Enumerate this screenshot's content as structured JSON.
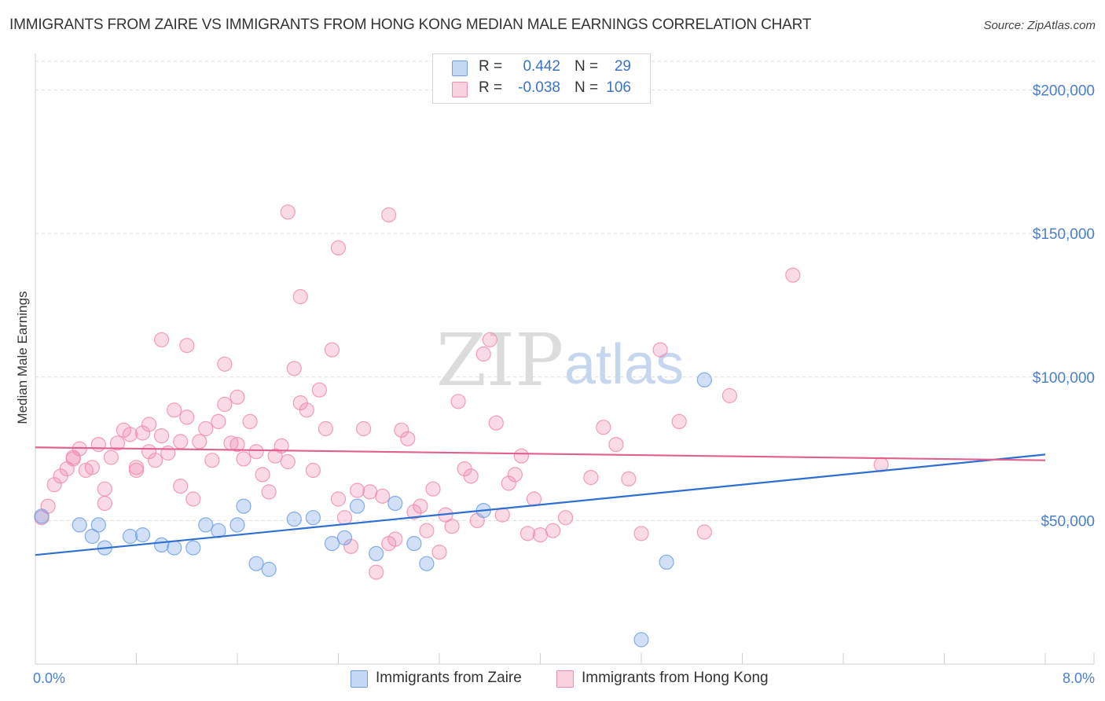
{
  "title": "IMMIGRANTS FROM ZAIRE VS IMMIGRANTS FROM HONG KONG MEDIAN MALE EARNINGS CORRELATION CHART",
  "source": "Source: ZipAtlas.com",
  "watermark": {
    "zip": "ZIP",
    "atlas": "atlas"
  },
  "legend_top": [
    {
      "r_label": "R =",
      "r_value": "0.442",
      "n_label": "N =",
      "n_value": "29",
      "color": "#6fa0e6"
    },
    {
      "r_label": "R =",
      "r_value": "-0.038",
      "n_label": "N =",
      "n_value": "106",
      "color": "#f08cb0"
    }
  ],
  "legend_bottom": [
    {
      "label": "Immigrants from Zaire",
      "color": "#6fa0e6"
    },
    {
      "label": "Immigrants from Hong Kong",
      "color": "#f08cb0"
    }
  ],
  "chart_data": {
    "type": "scatter",
    "title": "IMMIGRANTS FROM ZAIRE VS IMMIGRANTS FROM HONG KONG MEDIAN MALE EARNINGS CORRELATION CHART",
    "xlabel": "",
    "ylabel": "Median Male Earnings",
    "xlim": [
      0.0,
      8.0
    ],
    "ylim": [
      0,
      210000
    ],
    "x_tick_labels": [
      "0.0%",
      "8.0%"
    ],
    "y_ticks": [
      50000,
      100000,
      150000,
      200000
    ],
    "y_tick_labels": [
      "$50,000",
      "$100,000",
      "$150,000",
      "$200,000"
    ],
    "grid": true,
    "series": [
      {
        "name": "Immigrants from Zaire",
        "color": "#6fa0e6",
        "trend": {
          "x": [
            0.0,
            8.0
          ],
          "y": [
            38000,
            73000
          ]
        },
        "points": [
          [
            0.05,
            51500
          ],
          [
            0.35,
            48500
          ],
          [
            0.5,
            48500
          ],
          [
            0.45,
            44500
          ],
          [
            0.55,
            40500
          ],
          [
            0.75,
            44500
          ],
          [
            0.85,
            45000
          ],
          [
            1.0,
            41500
          ],
          [
            1.1,
            40500
          ],
          [
            1.25,
            40500
          ],
          [
            1.35,
            48500
          ],
          [
            1.45,
            46500
          ],
          [
            1.6,
            48500
          ],
          [
            1.75,
            35000
          ],
          [
            1.85,
            33000
          ],
          [
            2.05,
            50500
          ],
          [
            2.2,
            51000
          ],
          [
            2.35,
            42000
          ],
          [
            2.45,
            44000
          ],
          [
            2.55,
            55000
          ],
          [
            2.7,
            38500
          ],
          [
            2.85,
            56000
          ],
          [
            3.0,
            42000
          ],
          [
            3.1,
            35000
          ],
          [
            3.55,
            53500
          ],
          [
            5.3,
            99000
          ],
          [
            5.0,
            35500
          ],
          [
            4.8,
            8500
          ],
          [
            1.65,
            55000
          ]
        ]
      },
      {
        "name": "Immigrants from Hong Kong",
        "color": "#f08cb0",
        "trend": {
          "x": [
            0.0,
            8.0
          ],
          "y": [
            75500,
            71000
          ]
        },
        "points": [
          [
            0.05,
            51000
          ],
          [
            0.1,
            55000
          ],
          [
            0.15,
            62500
          ],
          [
            0.2,
            65500
          ],
          [
            0.25,
            68000
          ],
          [
            0.3,
            71500
          ],
          [
            0.35,
            75000
          ],
          [
            0.4,
            67500
          ],
          [
            0.45,
            68500
          ],
          [
            0.5,
            76500
          ],
          [
            0.55,
            56000
          ],
          [
            0.6,
            72000
          ],
          [
            0.65,
            77000
          ],
          [
            0.7,
            81500
          ],
          [
            0.75,
            80000
          ],
          [
            0.8,
            68500
          ],
          [
            0.85,
            80500
          ],
          [
            0.9,
            74000
          ],
          [
            0.95,
            71000
          ],
          [
            1.0,
            79500
          ],
          [
            1.05,
            73500
          ],
          [
            1.1,
            88500
          ],
          [
            1.15,
            77500
          ],
          [
            1.2,
            86000
          ],
          [
            1.25,
            57500
          ],
          [
            1.3,
            77500
          ],
          [
            1.35,
            82000
          ],
          [
            1.4,
            71000
          ],
          [
            1.45,
            84500
          ],
          [
            1.5,
            90500
          ],
          [
            1.55,
            77000
          ],
          [
            1.6,
            93000
          ],
          [
            1.65,
            71500
          ],
          [
            1.7,
            84500
          ],
          [
            1.75,
            74000
          ],
          [
            1.8,
            66000
          ],
          [
            1.85,
            60000
          ],
          [
            1.9,
            72500
          ],
          [
            1.95,
            76000
          ],
          [
            2.0,
            70500
          ],
          [
            2.05,
            103000
          ],
          [
            2.1,
            91000
          ],
          [
            2.15,
            88500
          ],
          [
            2.2,
            67500
          ],
          [
            2.25,
            95500
          ],
          [
            2.3,
            82000
          ],
          [
            2.35,
            109500
          ],
          [
            2.4,
            57500
          ],
          [
            2.45,
            51000
          ],
          [
            2.5,
            41000
          ],
          [
            2.55,
            60500
          ],
          [
            2.6,
            82000
          ],
          [
            2.65,
            60000
          ],
          [
            2.7,
            32000
          ],
          [
            2.75,
            58500
          ],
          [
            2.8,
            42000
          ],
          [
            2.85,
            43500
          ],
          [
            2.9,
            81500
          ],
          [
            2.95,
            78500
          ],
          [
            3.0,
            53000
          ],
          [
            3.05,
            55000
          ],
          [
            3.1,
            46500
          ],
          [
            3.15,
            61000
          ],
          [
            3.2,
            39000
          ],
          [
            3.25,
            52000
          ],
          [
            3.3,
            48000
          ],
          [
            3.35,
            91500
          ],
          [
            3.4,
            68000
          ],
          [
            3.45,
            65500
          ],
          [
            3.5,
            50000
          ],
          [
            3.55,
            108000
          ],
          [
            3.6,
            113000
          ],
          [
            3.65,
            84000
          ],
          [
            3.7,
            52000
          ],
          [
            3.75,
            63000
          ],
          [
            3.8,
            66000
          ],
          [
            3.85,
            72500
          ],
          [
            3.9,
            45500
          ],
          [
            3.95,
            57500
          ],
          [
            4.0,
            45000
          ],
          [
            4.1,
            46500
          ],
          [
            4.2,
            51000
          ],
          [
            4.4,
            65000
          ],
          [
            4.5,
            82500
          ],
          [
            4.6,
            76500
          ],
          [
            4.7,
            64500
          ],
          [
            4.8,
            45500
          ],
          [
            4.95,
            109500
          ],
          [
            5.1,
            84500
          ],
          [
            5.3,
            46000
          ],
          [
            5.5,
            93500
          ],
          [
            6.0,
            135500
          ],
          [
            6.7,
            69500
          ],
          [
            1.0,
            113000
          ],
          [
            1.2,
            111000
          ],
          [
            1.5,
            104500
          ],
          [
            2.0,
            157500
          ],
          [
            2.1,
            128000
          ],
          [
            2.4,
            145000
          ],
          [
            2.8,
            156500
          ],
          [
            0.55,
            61000
          ],
          [
            0.8,
            67500
          ],
          [
            1.15,
            62000
          ],
          [
            1.6,
            76500
          ],
          [
            0.3,
            72000
          ],
          [
            0.9,
            83500
          ]
        ]
      }
    ]
  }
}
